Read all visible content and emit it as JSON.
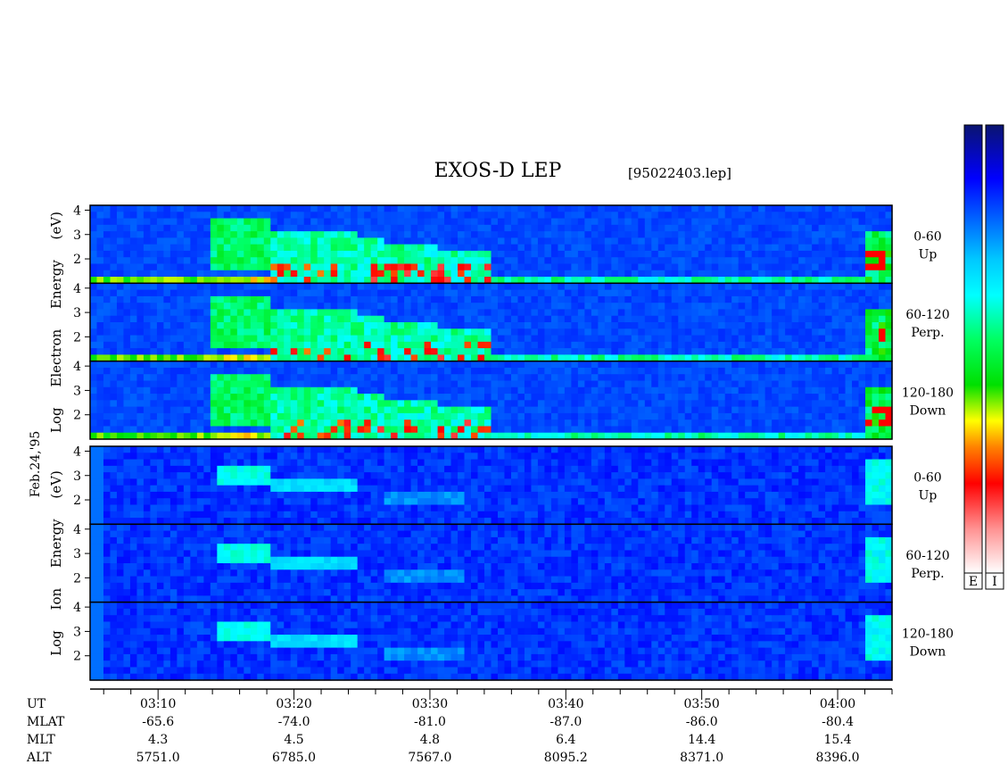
{
  "chart_data": {
    "type": "heatmap",
    "title": "EXOS-D LEP",
    "file_label": "[95022403.lep]",
    "date_label": "Feb.24,'95",
    "x_axis": {
      "ticks": [
        "03:10",
        "03:20",
        "03:30",
        "03:40",
        "03:50",
        "04:00"
      ],
      "range": [
        "03:05",
        "04:04"
      ]
    },
    "y_axis": {
      "ticks": [
        "2",
        "3",
        "4"
      ],
      "range": [
        1,
        4.2
      ],
      "scale": "log10 energy (eV)"
    },
    "groups": [
      {
        "label": [
          "Log",
          "Electron",
          "Energy",
          "(eV)"
        ],
        "panels": [
          {
            "range": "0-60",
            "dir": "Up"
          },
          {
            "range": "60-120",
            "dir": "Perp."
          },
          {
            "range": "120-180",
            "dir": "Down"
          }
        ]
      },
      {
        "label": [
          "Log",
          "Ion",
          "Energy",
          "(eV)"
        ],
        "panels": [
          {
            "range": "0-60",
            "dir": "Up"
          },
          {
            "range": "60-120",
            "dir": "Perp."
          },
          {
            "range": "120-180",
            "dir": "Down"
          }
        ]
      }
    ],
    "ephemeris": {
      "labels": [
        "UT",
        "MLAT",
        "MLT",
        "ALT"
      ],
      "UT": [
        "03:10",
        "03:20",
        "03:30",
        "03:40",
        "03:50",
        "04:00"
      ],
      "MLAT": [
        "-65.6",
        "-74.0",
        "-81.0",
        "-87.0",
        "-86.0",
        "-80.4"
      ],
      "MLT": [
        "4.3",
        "4.5",
        "4.8",
        "6.4",
        "14.4",
        "15.4"
      ],
      "ALT": [
        "5751.0",
        "6785.0",
        "7567.0",
        "8095.2",
        "8371.0",
        "8396.0"
      ]
    },
    "colorbar": {
      "labels": [
        "E",
        "I"
      ],
      "colors": [
        "#0a1470",
        "#0000ff",
        "#00c8ff",
        "#00ffff",
        "#00ff60",
        "#00e000",
        "#ffff00",
        "#ff8000",
        "#ff0000",
        "#ff9090",
        "#ffffff"
      ]
    },
    "grid": false
  }
}
